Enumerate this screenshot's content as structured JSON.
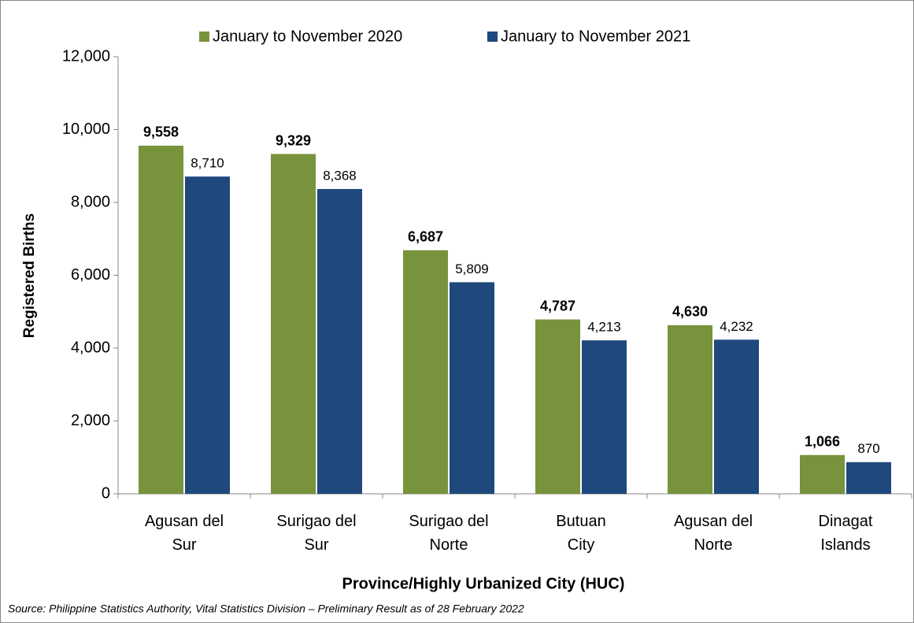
{
  "chart_data": {
    "type": "bar",
    "categories": [
      "Agusan del Sur",
      "Surigao del Sur",
      "Surigao del Norte",
      "Butuan City",
      "Agusan del Norte",
      "Dinagat Islands"
    ],
    "series": [
      {
        "name": "January to November 2020",
        "color": "#77933c",
        "values": [
          9558,
          9329,
          6687,
          4787,
          4630,
          1066
        ],
        "value_labels": [
          "9,558",
          "9,329",
          "6,687",
          "4,787",
          "4,630",
          "1,066"
        ]
      },
      {
        "name": "January to November 2021",
        "color": "#1f497d",
        "values": [
          8710,
          8368,
          5809,
          4213,
          4232,
          870
        ],
        "value_labels": [
          "8,710",
          "8,368",
          "5,809",
          "4,213",
          "4,232",
          "870"
        ]
      }
    ],
    "ylabel": "Registered Births",
    "xlabel": "Province/Highly Urbanized City (HUC)",
    "source": "Source:  Philippine Statistics Authority, Vital Statistics Division – Preliminary Result as of 28 February 2022",
    "ylim": [
      0,
      12000
    ],
    "yticks": [
      0,
      {
        "value": 2000,
        "label": "2,000"
      },
      {
        "value": 4000,
        "label": "4,000"
      },
      {
        "value": 6000,
        "label": "6,000"
      },
      {
        "value": 8000,
        "label": "8,000"
      },
      {
        "value": 10000,
        "label": "10,000"
      },
      {
        "value": 12000,
        "label": "12,000"
      }
    ],
    "grid": false
  }
}
